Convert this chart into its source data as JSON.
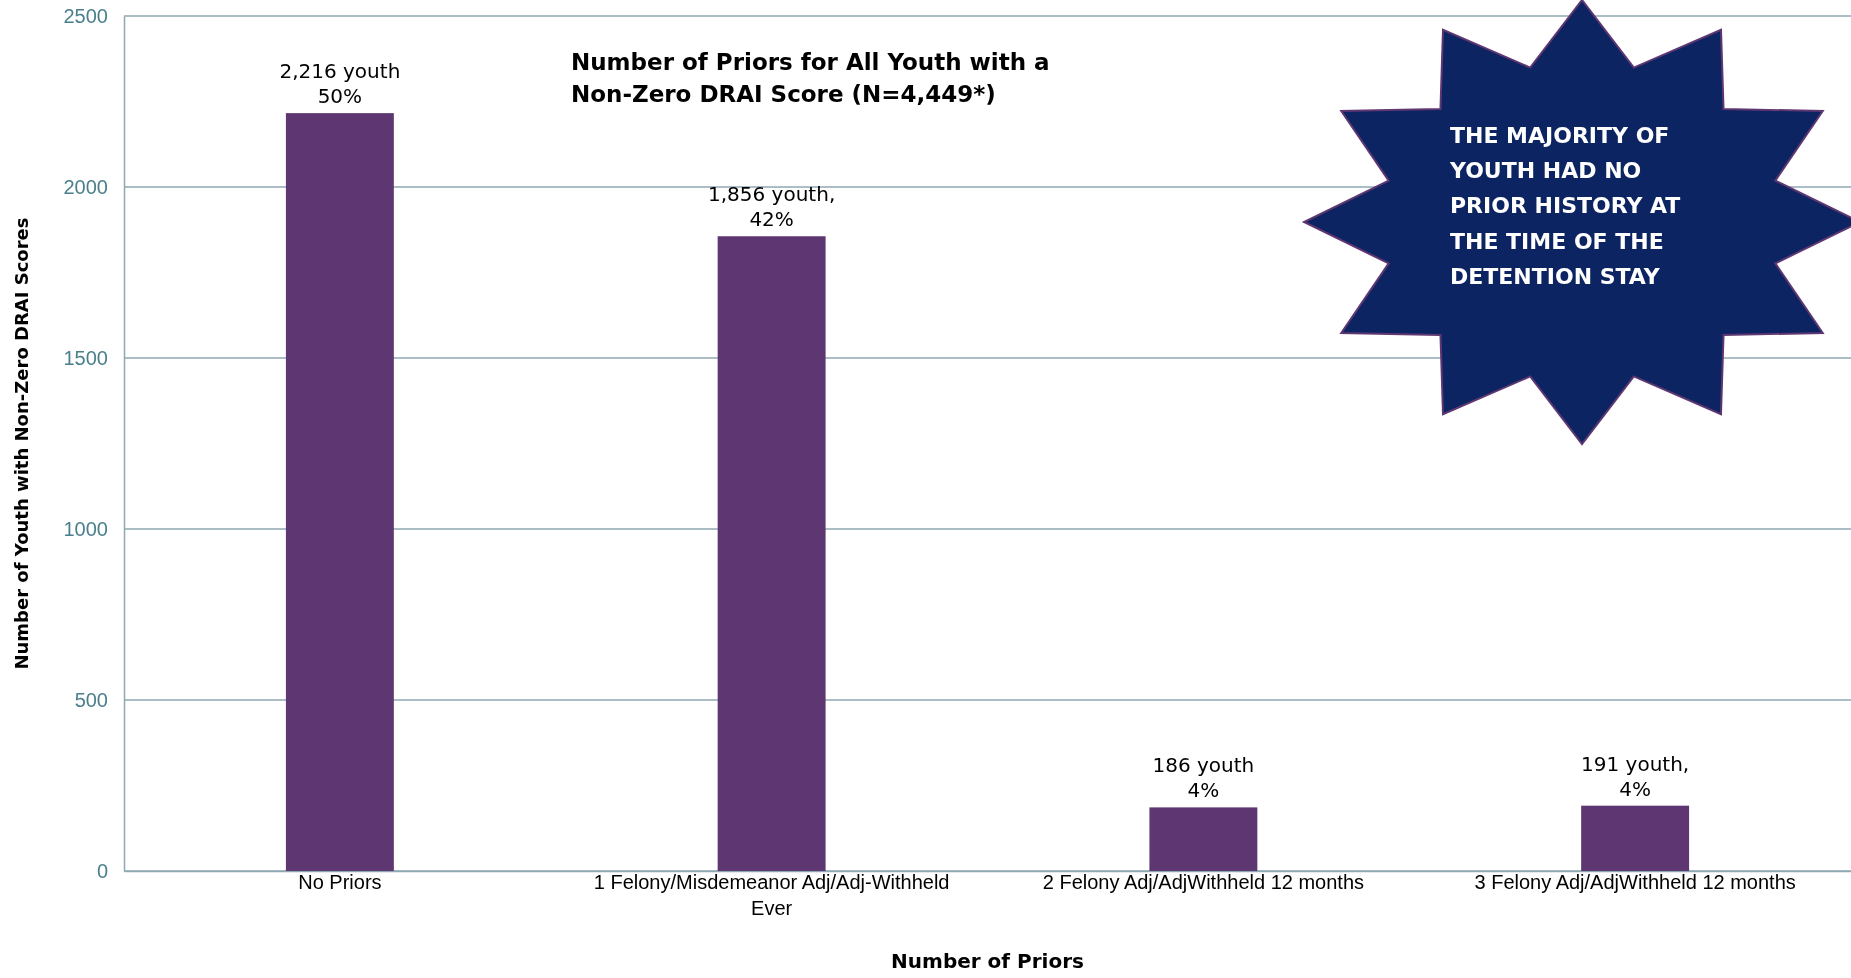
{
  "chart_data": {
    "type": "bar",
    "title": "Number of Priors for All Youth with a Non-Zero DRAI Score (N=4,449*)",
    "xlabel": "Number of Priors",
    "ylabel": "Number of Youth with Non-Zero DRAI Scores",
    "categories": [
      "No Priors",
      "1 Felony/Misdemeanor Adj/Adj-Withheld Ever",
      "2 Felony Adj/AdjWithheld 12 months",
      "3 Felony Adj/AdjWithheld 12 months"
    ],
    "values": [
      2216,
      1856,
      186,
      191
    ],
    "value_labels": [
      "2,216 youth\n50%",
      "1,856 youth,\n42%",
      "186 youth\n4%",
      "191 youth,\n4%"
    ],
    "color": "#5e3772",
    "ylim": [
      0,
      2500
    ],
    "yticks": [
      0,
      500,
      1000,
      1500,
      2000,
      2500
    ],
    "grid": "y",
    "annotations": [
      "THE MAJORITY OF YOUTH HAD NO PRIOR HISTORY AT THE TIME OF THE DETENTION STAY"
    ]
  }
}
